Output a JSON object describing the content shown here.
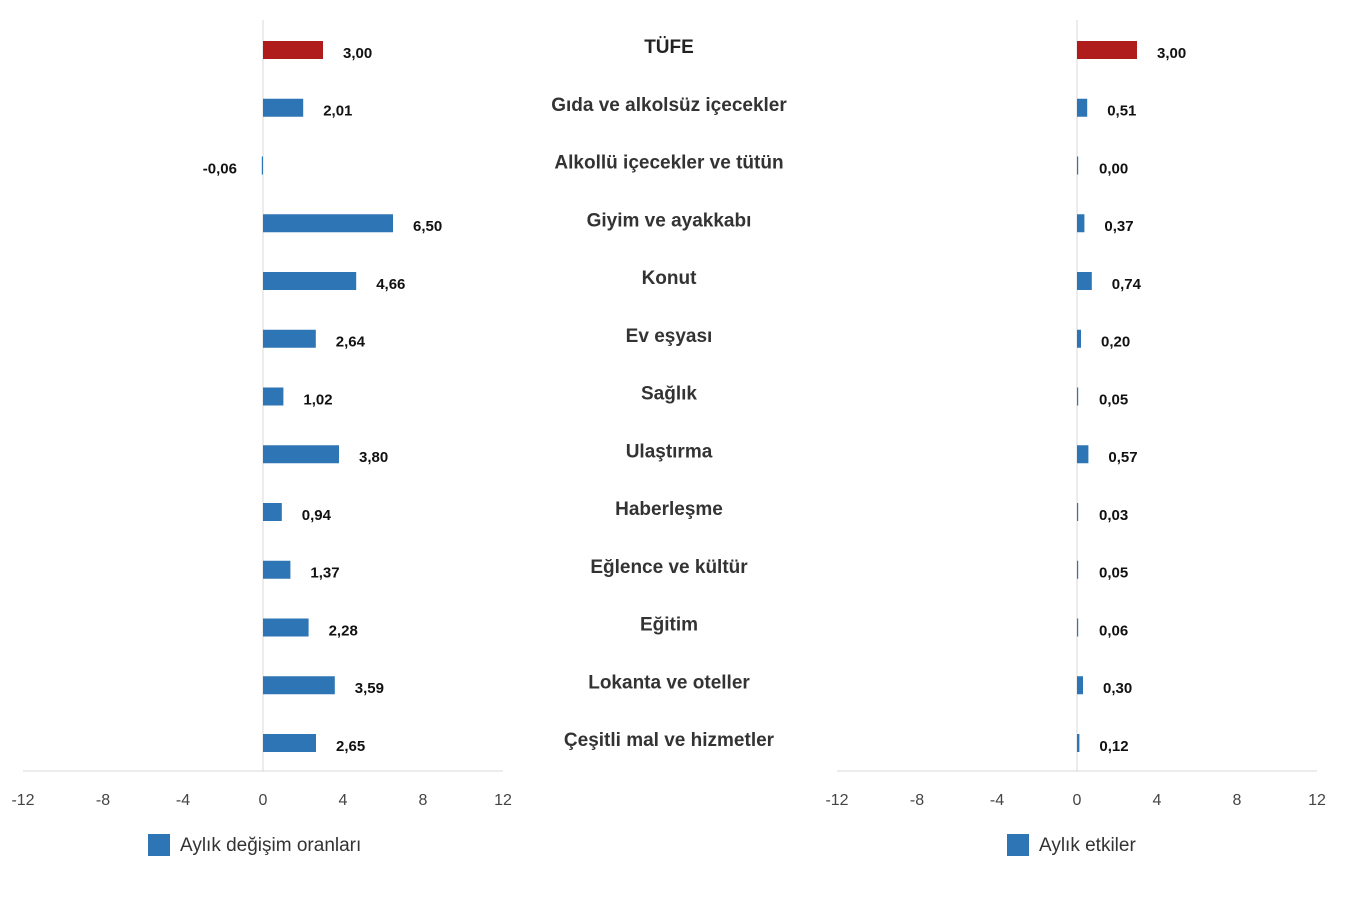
{
  "chart_data": {
    "type": "bar",
    "orientation": "horizontal",
    "categories": [
      "TÜFE",
      "Gıda ve alkolsüz içecekler",
      "Alkollü içecekler ve tütün",
      "Giyim ve ayakkabı",
      "Konut",
      "Ev eşyası",
      "Sağlık",
      "Ulaştırma",
      "Haberleşme",
      "Eğlence ve kültür",
      "Eğitim",
      "Lokanta ve oteller",
      "Çeşitli mal ve hizmetler"
    ],
    "series": [
      {
        "name": "Aylık değişim oranları",
        "values": [
          3.0,
          2.01,
          -0.06,
          6.5,
          4.66,
          2.64,
          1.02,
          3.8,
          0.94,
          1.37,
          2.28,
          3.59,
          2.65
        ],
        "labels": [
          "3,00",
          "2,01",
          "-0,06",
          "6,50",
          "4,66",
          "2,64",
          "1,02",
          "3,80",
          "0,94",
          "1,37",
          "2,28",
          "3,59",
          "2,65"
        ]
      },
      {
        "name": "Aylık etkiler",
        "values": [
          3.0,
          0.51,
          0.0,
          0.37,
          0.74,
          0.2,
          0.05,
          0.57,
          0.03,
          0.05,
          0.06,
          0.3,
          0.12
        ],
        "labels": [
          "3,00",
          "0,51",
          "0,00",
          "0,37",
          "0,74",
          "0,20",
          "0,05",
          "0,57",
          "0,03",
          "0,05",
          "0,06",
          "0,30",
          "0,12"
        ]
      }
    ],
    "xlim": [
      -12,
      12
    ],
    "xticks": [
      "-12",
      "-8",
      "-4",
      "0",
      "4",
      "8",
      "12"
    ],
    "legend_position": "bottom",
    "grid": false,
    "colors": {
      "series": "#2e75b6",
      "highlight": "#b01c1c",
      "axis": "#d9d9d9"
    }
  }
}
